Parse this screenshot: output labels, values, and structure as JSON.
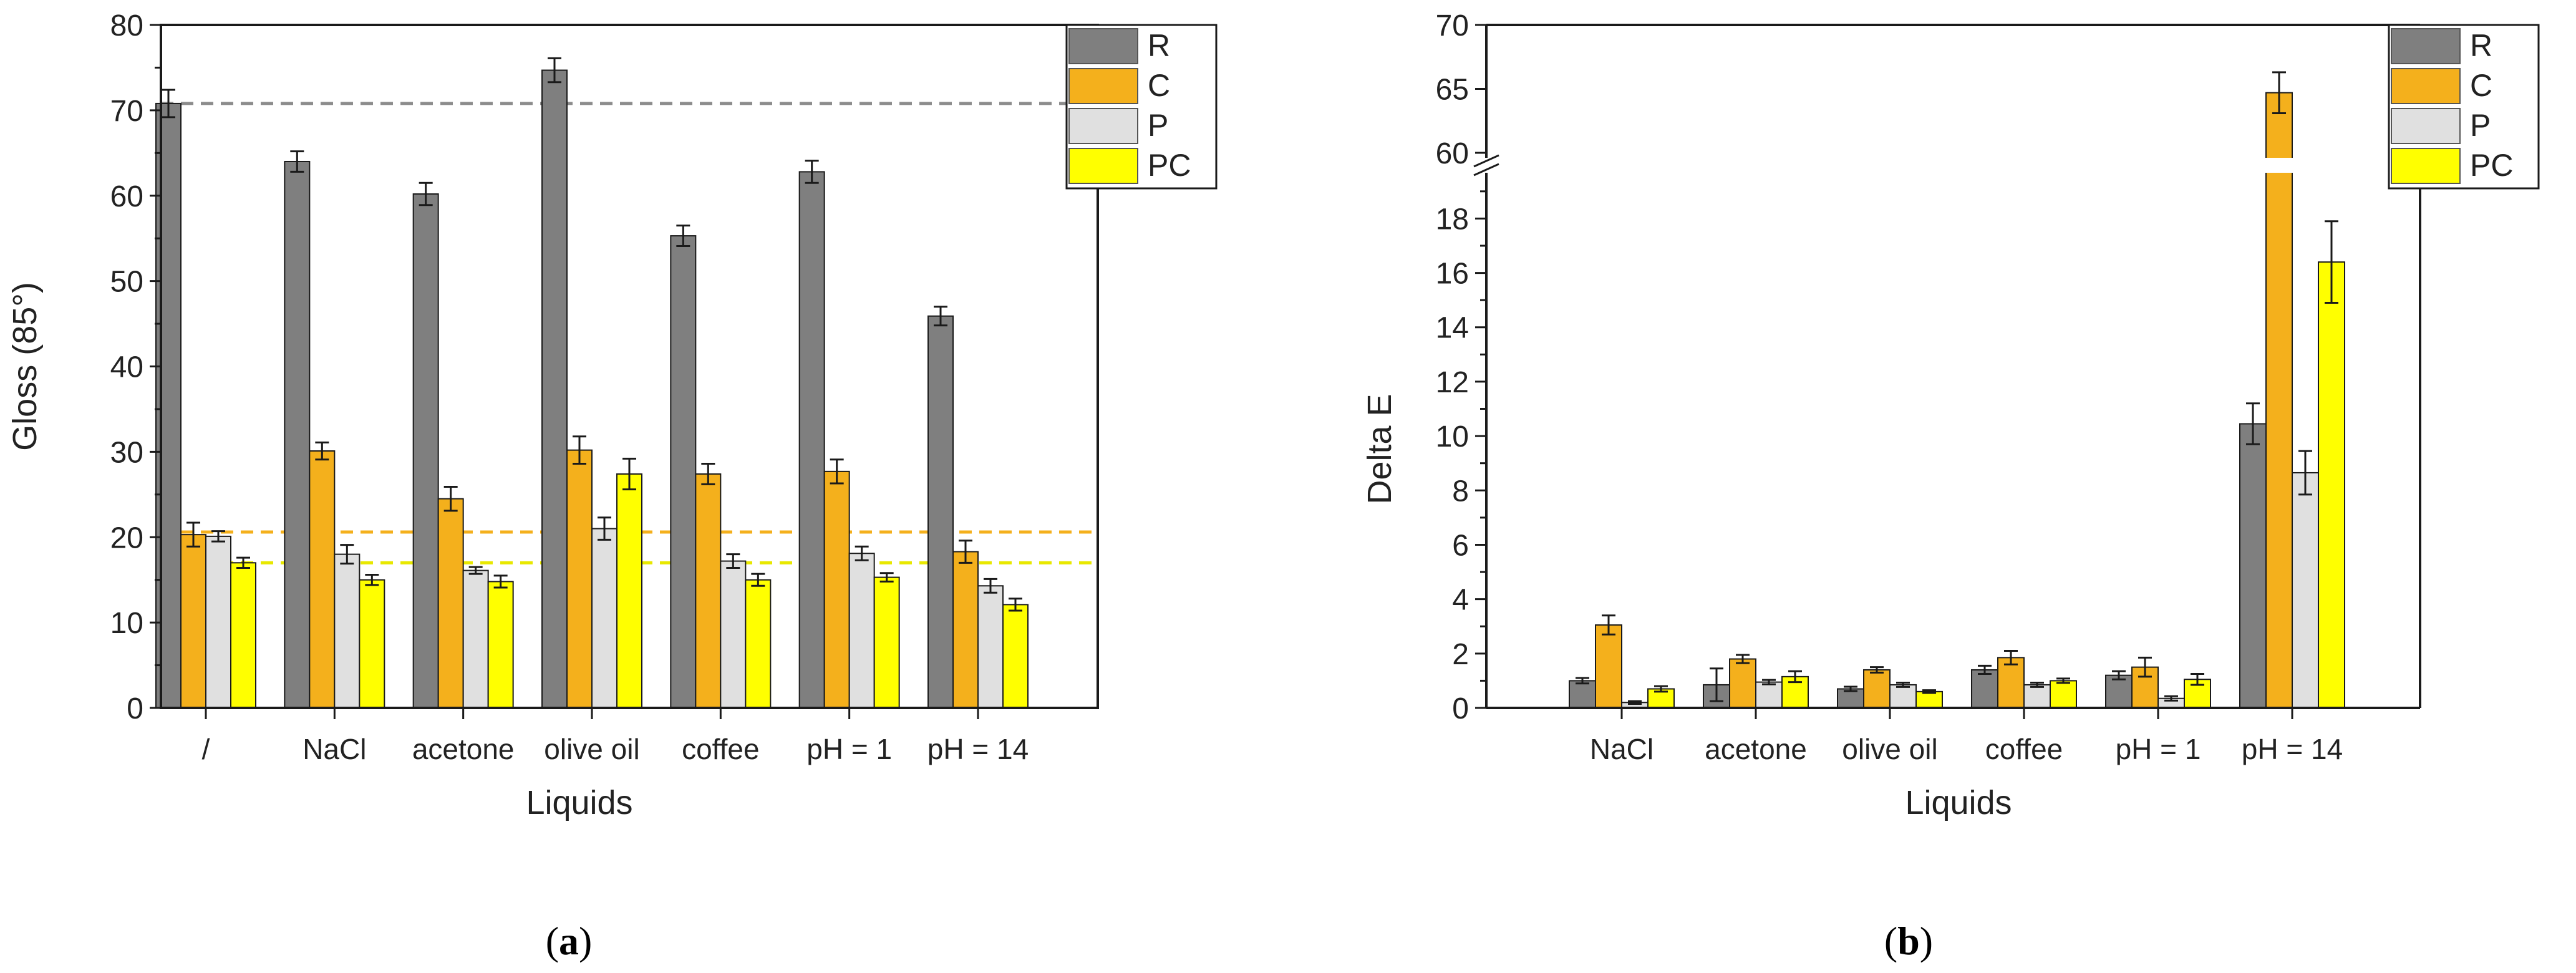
{
  "panels": [
    {
      "label": "a"
    },
    {
      "label": "b"
    }
  ],
  "colors": {
    "R": "#7f7f7f",
    "C": "#f4b01c",
    "P": "#e0e0e0",
    "PC": "#ffff00",
    "R_ref": "#8c8c8c",
    "C_ref": "#f4b01c",
    "PC_ref": "#e8e800"
  },
  "chart_data": [
    {
      "type": "bar",
      "panel": "a",
      "title": "",
      "xlabel": "Liquids",
      "ylabel": "Gloss (85°)",
      "ylim": [
        0,
        80
      ],
      "yticks": [
        0,
        10,
        20,
        30,
        40,
        50,
        60,
        70,
        80
      ],
      "categories": [
        "/",
        "NaCl",
        "acetone",
        "olive oil",
        "coffee",
        "pH = 1",
        "pH = 14"
      ],
      "series": [
        {
          "name": "R",
          "values": [
            70.8,
            64.0,
            60.2,
            74.7,
            55.3,
            62.8,
            45.9
          ],
          "errors": [
            1.6,
            1.2,
            1.3,
            1.4,
            1.2,
            1.3,
            1.1
          ]
        },
        {
          "name": "C",
          "values": [
            20.3,
            30.1,
            24.5,
            30.2,
            27.4,
            27.7,
            18.3
          ],
          "errors": [
            1.4,
            1.0,
            1.4,
            1.6,
            1.2,
            1.4,
            1.3
          ]
        },
        {
          "name": "P",
          "values": [
            20.1,
            18.0,
            16.1,
            21.0,
            17.2,
            18.1,
            14.3
          ],
          "errors": [
            0.6,
            1.1,
            0.4,
            1.3,
            0.8,
            0.8,
            0.8
          ]
        },
        {
          "name": "PC",
          "values": [
            17.0,
            15.0,
            14.8,
            27.4,
            15.0,
            15.3,
            12.1
          ],
          "errors": [
            0.6,
            0.6,
            0.7,
            1.8,
            0.7,
            0.5,
            0.7
          ]
        }
      ],
      "reference_lines": [
        {
          "series": "R",
          "value": 70.8,
          "style": "dashed"
        },
        {
          "series": "C",
          "value": 20.6,
          "style": "dashed"
        },
        {
          "series": "PC",
          "value": 17.0,
          "style": "dashed"
        }
      ],
      "legend": {
        "position": "top-right",
        "entries": [
          "R",
          "C",
          "P",
          "PC"
        ]
      }
    },
    {
      "type": "bar",
      "panel": "b",
      "title": "",
      "xlabel": "Liquids",
      "ylabel": "Delta E",
      "ylim": [
        0,
        70
      ],
      "axis_break": {
        "from": 19.5,
        "to": 60
      },
      "yticks_lower": [
        0,
        2,
        4,
        6,
        8,
        10,
        12,
        14,
        16,
        18
      ],
      "yticks_upper": [
        60,
        65,
        70
      ],
      "categories": [
        "NaCl",
        "acetone",
        "olive oil",
        "coffee",
        "pH = 1",
        "pH = 14"
      ],
      "series": [
        {
          "name": "R",
          "values": [
            1.0,
            0.85,
            0.7,
            1.4,
            1.2,
            10.45
          ],
          "errors": [
            0.1,
            0.6,
            0.08,
            0.15,
            0.15,
            0.75
          ]
        },
        {
          "name": "C",
          "values": [
            3.05,
            1.8,
            1.4,
            1.85,
            1.5,
            64.7
          ],
          "errors": [
            0.35,
            0.15,
            0.1,
            0.25,
            0.35,
            1.6
          ]
        },
        {
          "name": "P",
          "values": [
            0.2,
            0.95,
            0.85,
            0.85,
            0.35,
            8.65
          ],
          "errors": [
            0.05,
            0.08,
            0.08,
            0.08,
            0.08,
            0.8
          ]
        },
        {
          "name": "PC",
          "values": [
            0.7,
            1.15,
            0.6,
            1.0,
            1.05,
            16.4
          ],
          "errors": [
            0.1,
            0.2,
            0.05,
            0.08,
            0.2,
            1.5
          ]
        }
      ],
      "legend": {
        "position": "top-right",
        "entries": [
          "R",
          "C",
          "P",
          "PC"
        ]
      }
    }
  ]
}
